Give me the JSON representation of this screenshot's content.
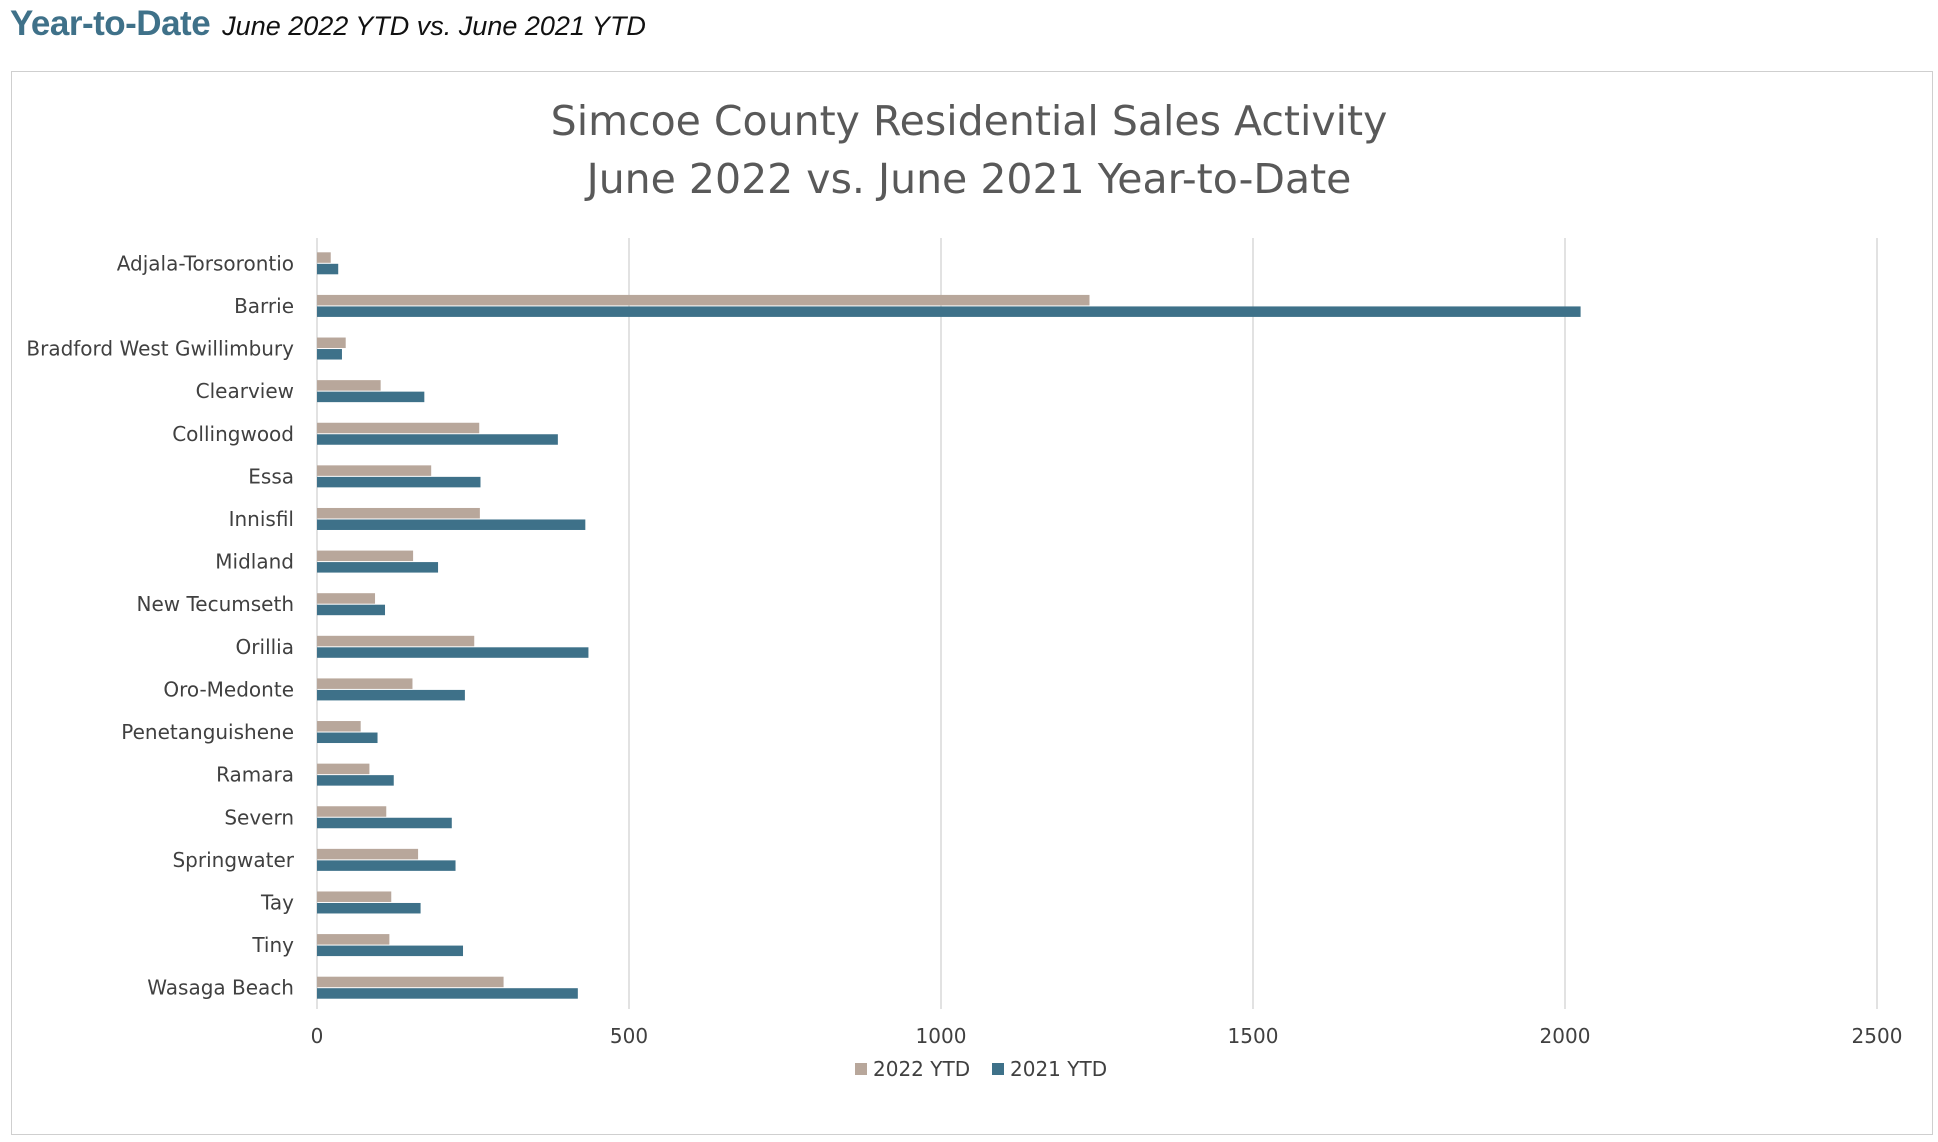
{
  "header": {
    "title": "Year-to-Date",
    "subtitle": "June 2022 YTD vs. June 2021 YTD"
  },
  "chart_data": {
    "type": "bar",
    "orientation": "horizontal",
    "title": "Simcoe County Residential Sales Activity",
    "subtitle": "June 2022 vs. June 2021 Year-to-Date",
    "xlabel": "",
    "ylabel": "",
    "xlim": [
      0,
      2500
    ],
    "xticks": [
      0,
      500,
      1000,
      1500,
      2000,
      2500
    ],
    "grid": true,
    "legend_position": "bottom",
    "categories": [
      "Adjala-Torsorontio",
      "Barrie",
      "Bradford West Gwillimbury",
      "Clearview",
      "Collingwood",
      "Essa",
      "Innisfil",
      "Midland",
      "New Tecumseth",
      "Orillia",
      "Oro-Medonte",
      "Penetanguishene",
      "Ramara",
      "Severn",
      "Springwater",
      "Tay",
      "Tiny",
      "Wasaga Beach"
    ],
    "series": [
      {
        "name": "2022 YTD",
        "color": "#b8a79b",
        "values": [
          22,
          1238,
          46,
          102,
          260,
          183,
          261,
          154,
          93,
          252,
          153,
          70,
          84,
          111,
          162,
          119,
          116,
          299
        ]
      },
      {
        "name": "2021 YTD",
        "color": "#3e7189",
        "values": [
          34,
          2025,
          40,
          172,
          386,
          262,
          430,
          194,
          109,
          435,
          237,
          97,
          123,
          216,
          222,
          166,
          234,
          418
        ]
      }
    ]
  }
}
